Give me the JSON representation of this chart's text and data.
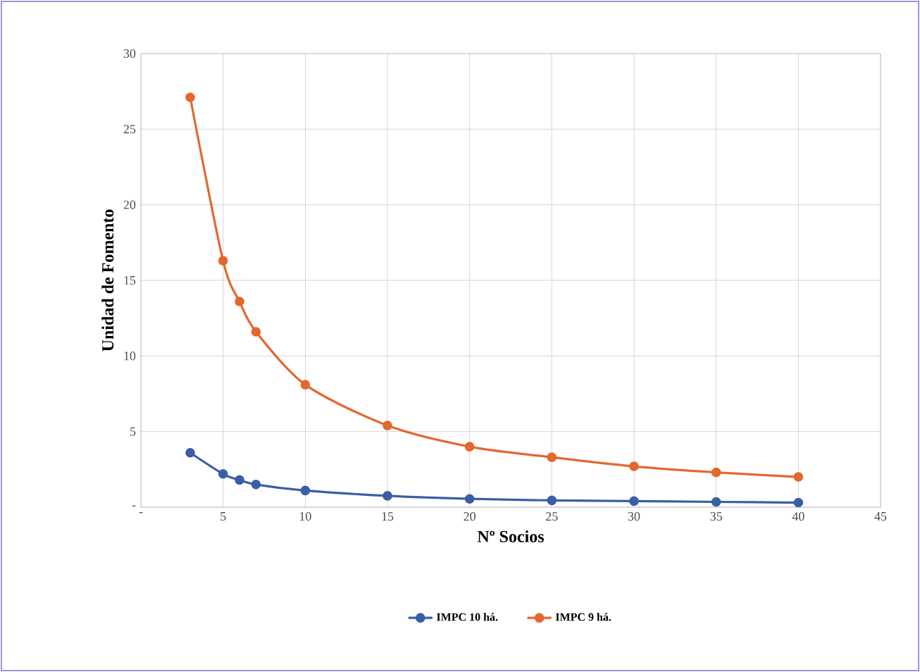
{
  "chart_data": {
    "type": "line",
    "xlabel": "Nº Socios",
    "ylabel": "Unidad de Fomento",
    "x": [
      3,
      5,
      6,
      7,
      10,
      15,
      20,
      25,
      30,
      35,
      40
    ],
    "series": [
      {
        "name": "IMPC 10 há.",
        "color": "#3b5ea6",
        "values": [
          3.6,
          2.2,
          1.8,
          1.5,
          1.1,
          0.75,
          0.55,
          0.45,
          0.4,
          0.35,
          0.3
        ]
      },
      {
        "name": "IMPC 9 há.",
        "color": "#e2682e",
        "values": [
          27.1,
          16.3,
          13.6,
          11.6,
          8.1,
          5.4,
          4.0,
          3.3,
          2.7,
          2.3,
          2.0
        ]
      }
    ],
    "xlim": [
      0,
      45
    ],
    "ylim": [
      0,
      30
    ],
    "xticks": [
      {
        "value": 0,
        "label": "-"
      },
      5,
      10,
      15,
      20,
      25,
      30,
      35,
      40,
      45
    ],
    "yticks": [
      {
        "value": 0,
        "label": "-"
      },
      5,
      10,
      15,
      20,
      25,
      30
    ],
    "grid": true,
    "legend": "bottom",
    "marker": "circle",
    "line_style": "solid"
  }
}
